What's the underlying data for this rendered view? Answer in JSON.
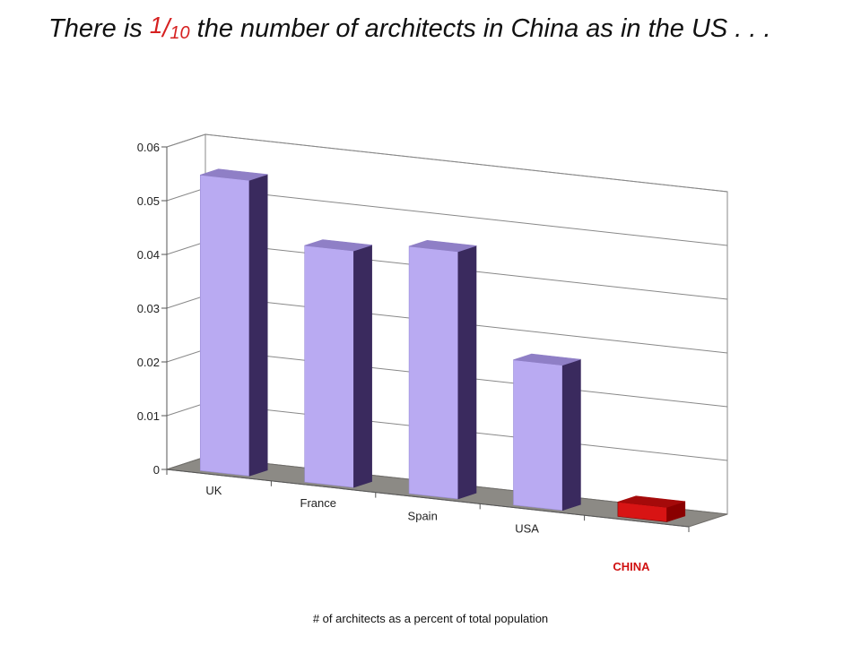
{
  "title": {
    "before": "There is ",
    "frac_num": "1",
    "frac_sep": "/",
    "frac_den": "10",
    "after": " the number of architects in China as in the US . . ."
  },
  "caption": "# of architects as a percent of total population",
  "colors": {
    "bar_front": "#b9aaf2",
    "bar_side": "#3a2a5e",
    "bar_top": "#8f7fc6",
    "highlight_front": "#d81414",
    "highlight_side": "#8a0000",
    "highlight_top": "#a50a0a",
    "highlight_label": "#d01010",
    "floor": "#8c8a85",
    "wall_lines": "#888888"
  },
  "chart_data": {
    "type": "bar",
    "categories": [
      "UK",
      "France",
      "Spain",
      "USA",
      "CHINA"
    ],
    "values": [
      0.055,
      0.044,
      0.046,
      0.027,
      0.0027
    ],
    "highlight": "CHINA",
    "ylim": [
      0,
      0.06
    ],
    "yticks": [
      "0",
      "0.01",
      "0.02",
      "0.03",
      "0.04",
      "0.05",
      "0.06"
    ],
    "xlabel": "# of architects as a percent of total population",
    "ylabel": "",
    "grid": true,
    "legend": "none",
    "style": "3d"
  }
}
